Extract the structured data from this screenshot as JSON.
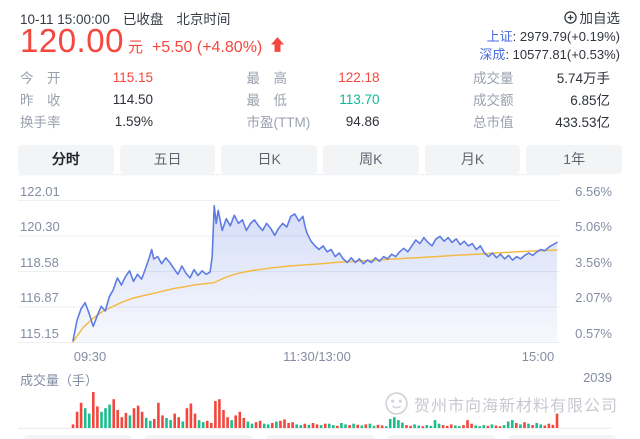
{
  "colors": {
    "up_red": "#f5473e",
    "down_green": "#0eb998",
    "link_blue": "#4a6bdf",
    "line_blue": "#5e7ce2",
    "avg_orange": "#f3bb45",
    "grid": "#edeff3",
    "vol_red": "#f3473e",
    "vol_green": "#1cbd8c",
    "baseline": "#e7e9ee"
  },
  "header": {
    "datetime": "10-11 15:00:00",
    "status": "已收盘",
    "timezone": "北京时间",
    "price": "120.00",
    "unit": "元",
    "change": "+5.50 (+4.80%)",
    "add_watchlist": "加自选",
    "indices": [
      {
        "name": "上证",
        "value": ": 2979.79(+0.19%)"
      },
      {
        "name": "深成",
        "value": ": 10577.81(+0.53%)"
      }
    ]
  },
  "stats": {
    "columns": [
      [
        {
          "label": "今　开",
          "value": "115.15",
          "color": "red"
        },
        {
          "label": "昨　收",
          "value": "114.50",
          "color": "dark"
        },
        {
          "label": "换手率",
          "value": "1.59%",
          "color": "dark"
        }
      ],
      [
        {
          "label": "最　高",
          "value": "122.18",
          "color": "red"
        },
        {
          "label": "最　低",
          "value": "113.70",
          "color": "green"
        },
        {
          "label": "市盈(TTM)",
          "value": "94.86",
          "color": "dark"
        }
      ],
      [
        {
          "label": "成交量",
          "value": "5.74万手",
          "color": "dark"
        },
        {
          "label": "成交额",
          "value": "6.85亿",
          "color": "dark"
        },
        {
          "label": "总市值",
          "value": "433.53亿",
          "color": "dark"
        }
      ]
    ]
  },
  "tabs": [
    {
      "label": "分时",
      "active": true
    },
    {
      "label": "五日",
      "active": false
    },
    {
      "label": "日K",
      "active": false
    },
    {
      "label": "周K",
      "active": false
    },
    {
      "label": "月K",
      "active": false
    },
    {
      "label": "1年",
      "active": false
    }
  ],
  "chart_data": {
    "type": "line",
    "title": "分时 intraday price vs time",
    "prev_close": 114.5,
    "open": 115.15,
    "high": 122.18,
    "low": 113.7,
    "close": 120.0,
    "y_left_labels": [
      "122.01",
      "120.30",
      "118.58",
      "116.87",
      "115.15"
    ],
    "y_right_labels": [
      "6.56%",
      "5.06%",
      "3.56%",
      "2.07%",
      "0.57%"
    ],
    "x_labels": [
      "09:30",
      "11:30/13:00",
      "15:00"
    ],
    "x_range_minutes": [
      0,
      240
    ],
    "pct_axis_gridlines": [
      6.56,
      5.06,
      3.56,
      2.07,
      0.57
    ],
    "series": [
      {
        "name": "price_pct_change",
        "points": [
          [
            0,
            0.65
          ],
          [
            2,
            1.5
          ],
          [
            4,
            2.0
          ],
          [
            6,
            2.25
          ],
          [
            8,
            1.8
          ],
          [
            10,
            1.25
          ],
          [
            12,
            1.7
          ],
          [
            14,
            2.1
          ],
          [
            16,
            1.9
          ],
          [
            18,
            2.5
          ],
          [
            20,
            2.8
          ],
          [
            22,
            3.3
          ],
          [
            24,
            3.0
          ],
          [
            26,
            3.35
          ],
          [
            28,
            3.6
          ],
          [
            30,
            3.15
          ],
          [
            32,
            3.45
          ],
          [
            34,
            3.25
          ],
          [
            36,
            3.7
          ],
          [
            38,
            4.2
          ],
          [
            39,
            4.5
          ],
          [
            40,
            4.1
          ],
          [
            42,
            4.2
          ],
          [
            44,
            3.9
          ],
          [
            46,
            4.15
          ],
          [
            48,
            3.95
          ],
          [
            50,
            3.7
          ],
          [
            52,
            3.45
          ],
          [
            54,
            3.8
          ],
          [
            56,
            3.5
          ],
          [
            58,
            3.3
          ],
          [
            60,
            3.65
          ],
          [
            62,
            3.4
          ],
          [
            64,
            3.6
          ],
          [
            66,
            3.45
          ],
          [
            68,
            3.55
          ],
          [
            69,
            4.2
          ],
          [
            70,
            6.35
          ],
          [
            71,
            5.6
          ],
          [
            72,
            6.15
          ],
          [
            74,
            5.3
          ],
          [
            76,
            5.8
          ],
          [
            78,
            5.5
          ],
          [
            80,
            5.95
          ],
          [
            82,
            5.6
          ],
          [
            84,
            5.75
          ],
          [
            86,
            5.3
          ],
          [
            88,
            5.6
          ],
          [
            90,
            5.75
          ],
          [
            92,
            5.5
          ],
          [
            94,
            5.3
          ],
          [
            96,
            5.6
          ],
          [
            98,
            5.4
          ],
          [
            100,
            5.1
          ],
          [
            102,
            5.4
          ],
          [
            104,
            5.6
          ],
          [
            106,
            5.45
          ],
          [
            108,
            5.9
          ],
          [
            110,
            6.0
          ],
          [
            112,
            5.7
          ],
          [
            114,
            5.9
          ],
          [
            115,
            5.5
          ],
          [
            116,
            5.2
          ],
          [
            118,
            4.85
          ],
          [
            120,
            4.65
          ],
          [
            122,
            4.5
          ],
          [
            124,
            4.65
          ],
          [
            126,
            4.4
          ],
          [
            128,
            4.5
          ],
          [
            130,
            4.2
          ],
          [
            132,
            4.35
          ],
          [
            134,
            4.1
          ],
          [
            136,
            3.95
          ],
          [
            138,
            4.15
          ],
          [
            140,
            3.95
          ],
          [
            142,
            4.1
          ],
          [
            144,
            3.9
          ],
          [
            146,
            4.05
          ],
          [
            148,
            3.95
          ],
          [
            150,
            4.15
          ],
          [
            152,
            4.0
          ],
          [
            154,
            4.2
          ],
          [
            156,
            4.1
          ],
          [
            158,
            4.3
          ],
          [
            160,
            4.2
          ],
          [
            162,
            4.4
          ],
          [
            164,
            4.55
          ],
          [
            166,
            4.4
          ],
          [
            168,
            4.65
          ],
          [
            170,
            4.9
          ],
          [
            172,
            4.75
          ],
          [
            174,
            5.0
          ],
          [
            176,
            4.8
          ],
          [
            178,
            4.65
          ],
          [
            180,
            4.95
          ],
          [
            182,
            5.05
          ],
          [
            184,
            4.85
          ],
          [
            186,
            5.0
          ],
          [
            188,
            4.8
          ],
          [
            190,
            4.95
          ],
          [
            192,
            4.7
          ],
          [
            194,
            4.85
          ],
          [
            196,
            4.65
          ],
          [
            198,
            4.75
          ],
          [
            200,
            4.5
          ],
          [
            202,
            4.65
          ],
          [
            204,
            4.35
          ],
          [
            206,
            4.2
          ],
          [
            208,
            4.35
          ],
          [
            210,
            4.15
          ],
          [
            212,
            4.3
          ],
          [
            214,
            4.1
          ],
          [
            216,
            4.25
          ],
          [
            218,
            4.05
          ],
          [
            220,
            4.2
          ],
          [
            222,
            4.1
          ],
          [
            224,
            4.25
          ],
          [
            226,
            4.35
          ],
          [
            228,
            4.25
          ],
          [
            230,
            4.4
          ],
          [
            232,
            4.5
          ],
          [
            234,
            4.45
          ],
          [
            236,
            4.6
          ],
          [
            238,
            4.7
          ],
          [
            240,
            4.8
          ]
        ]
      },
      {
        "name": "avg_price_pct_change",
        "points": [
          [
            0,
            0.6
          ],
          [
            5,
            1.2
          ],
          [
            10,
            1.6
          ],
          [
            15,
            1.9
          ],
          [
            20,
            2.1
          ],
          [
            25,
            2.3
          ],
          [
            30,
            2.45
          ],
          [
            35,
            2.55
          ],
          [
            40,
            2.65
          ],
          [
            45,
            2.75
          ],
          [
            50,
            2.85
          ],
          [
            55,
            2.92
          ],
          [
            60,
            3.0
          ],
          [
            65,
            3.05
          ],
          [
            70,
            3.1
          ],
          [
            75,
            3.3
          ],
          [
            80,
            3.45
          ],
          [
            85,
            3.55
          ],
          [
            90,
            3.62
          ],
          [
            95,
            3.68
          ],
          [
            100,
            3.74
          ],
          [
            105,
            3.78
          ],
          [
            110,
            3.82
          ],
          [
            115,
            3.85
          ],
          [
            120,
            3.88
          ],
          [
            130,
            3.95
          ],
          [
            140,
            4.0
          ],
          [
            150,
            4.05
          ],
          [
            160,
            4.1
          ],
          [
            170,
            4.15
          ],
          [
            180,
            4.2
          ],
          [
            190,
            4.26
          ],
          [
            200,
            4.3
          ],
          [
            210,
            4.35
          ],
          [
            220,
            4.4
          ],
          [
            230,
            4.44
          ],
          [
            240,
            4.48
          ]
        ]
      }
    ],
    "volume": {
      "label": "成交量（手）",
      "latest": "2039",
      "unit": "relative_height_0_100",
      "bars": [
        [
          10,
          "r"
        ],
        [
          45,
          "r"
        ],
        [
          70,
          "r"
        ],
        [
          55,
          "g"
        ],
        [
          40,
          "g"
        ],
        [
          100,
          "r"
        ],
        [
          60,
          "r"
        ],
        [
          45,
          "g"
        ],
        [
          55,
          "g"
        ],
        [
          65,
          "g"
        ],
        [
          80,
          "r"
        ],
        [
          50,
          "r"
        ],
        [
          30,
          "r"
        ],
        [
          42,
          "r"
        ],
        [
          35,
          "g"
        ],
        [
          55,
          "r"
        ],
        [
          62,
          "r"
        ],
        [
          45,
          "r"
        ],
        [
          28,
          "g"
        ],
        [
          20,
          "g"
        ],
        [
          25,
          "r"
        ],
        [
          70,
          "r"
        ],
        [
          35,
          "r"
        ],
        [
          28,
          "g"
        ],
        [
          22,
          "g"
        ],
        [
          40,
          "r"
        ],
        [
          30,
          "r"
        ],
        [
          18,
          "g"
        ],
        [
          55,
          "r"
        ],
        [
          68,
          "r"
        ],
        [
          40,
          "r"
        ],
        [
          22,
          "g"
        ],
        [
          16,
          "g"
        ],
        [
          20,
          "r"
        ],
        [
          14,
          "r"
        ],
        [
          75,
          "r"
        ],
        [
          80,
          "r"
        ],
        [
          50,
          "r"
        ],
        [
          30,
          "r"
        ],
        [
          22,
          "g"
        ],
        [
          35,
          "r"
        ],
        [
          45,
          "r"
        ],
        [
          28,
          "r"
        ],
        [
          18,
          "g"
        ],
        [
          12,
          "g"
        ],
        [
          16,
          "r"
        ],
        [
          20,
          "r"
        ],
        [
          12,
          "g"
        ],
        [
          10,
          "g"
        ],
        [
          14,
          "r"
        ],
        [
          18,
          "g"
        ],
        [
          20,
          "r"
        ],
        [
          24,
          "r"
        ],
        [
          14,
          "r"
        ],
        [
          16,
          "r"
        ],
        [
          10,
          "g"
        ],
        [
          8,
          "g"
        ],
        [
          12,
          "r"
        ],
        [
          9,
          "g"
        ],
        [
          14,
          "r"
        ],
        [
          10,
          "r"
        ],
        [
          8,
          "g"
        ],
        [
          12,
          "r"
        ],
        [
          12,
          "g"
        ],
        [
          8,
          "g"
        ],
        [
          6,
          "r"
        ],
        [
          14,
          "g"
        ],
        [
          10,
          "g"
        ],
        [
          8,
          "r"
        ],
        [
          12,
          "g"
        ],
        [
          9,
          "r"
        ],
        [
          7,
          "g"
        ],
        [
          10,
          "r"
        ],
        [
          12,
          "g"
        ],
        [
          6,
          "g"
        ],
        [
          9,
          "r"
        ],
        [
          7,
          "r"
        ],
        [
          5,
          "g"
        ],
        [
          25,
          "g"
        ],
        [
          30,
          "g"
        ],
        [
          22,
          "g"
        ],
        [
          15,
          "g"
        ],
        [
          8,
          "r"
        ],
        [
          6,
          "r"
        ],
        [
          10,
          "g"
        ],
        [
          7,
          "g"
        ],
        [
          5,
          "r"
        ],
        [
          8,
          "g"
        ],
        [
          6,
          "g"
        ],
        [
          22,
          "g"
        ],
        [
          12,
          "g"
        ],
        [
          8,
          "r"
        ],
        [
          6,
          "r"
        ],
        [
          10,
          "r"
        ],
        [
          7,
          "g"
        ],
        [
          5,
          "g"
        ],
        [
          8,
          "r"
        ],
        [
          22,
          "r"
        ],
        [
          12,
          "r"
        ],
        [
          7,
          "g"
        ],
        [
          5,
          "g"
        ],
        [
          8,
          "g"
        ],
        [
          6,
          "r"
        ],
        [
          10,
          "g"
        ],
        [
          7,
          "r"
        ],
        [
          5,
          "r"
        ],
        [
          8,
          "g"
        ],
        [
          18,
          "g"
        ],
        [
          22,
          "g"
        ],
        [
          14,
          "r"
        ],
        [
          10,
          "g"
        ],
        [
          16,
          "r"
        ],
        [
          12,
          "g"
        ],
        [
          8,
          "r"
        ],
        [
          14,
          "g"
        ],
        [
          10,
          "g"
        ],
        [
          7,
          "r"
        ],
        [
          12,
          "r"
        ],
        [
          9,
          "r"
        ],
        [
          40,
          "r"
        ]
      ]
    }
  },
  "watermark": {
    "text": "贺州市向海新材料有限公司"
  }
}
